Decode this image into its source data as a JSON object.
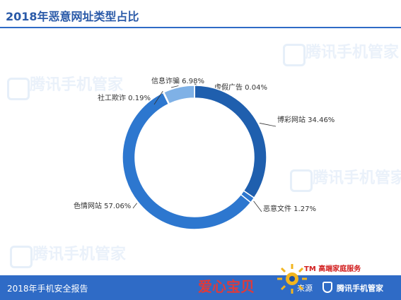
{
  "header": {
    "title": "2018年恶意网址类型占比"
  },
  "footer": {
    "left_text": "2018年手机安全报告",
    "source_text": "来源",
    "brand_text": "腾讯手机管家"
  },
  "watermark": {
    "text": "腾讯手机管家"
  },
  "stamp": {
    "name_text": "爱心宝贝",
    "brand_text": "TM 高端家庭服务"
  },
  "colors": {
    "accent": "#2f6bc6",
    "ring_dark": "#1f5fae",
    "ring_mid": "#2d77cf",
    "ring_light": "#7fb1e6",
    "leader": "#333333"
  },
  "chart_data": {
    "type": "pie",
    "donut": true,
    "title": "2018年恶意网址类型占比",
    "slices": [
      {
        "label": "虚假广告 0.04%",
        "value": 0.04,
        "color": "#1f5fae"
      },
      {
        "label": "博彩网站 34.46%",
        "value": 34.46,
        "color": "#1f5fae"
      },
      {
        "label": "恶意文件 1.27%",
        "value": 1.27,
        "color": "#2d77cf"
      },
      {
        "label": "色情网站 57.06%",
        "value": 57.06,
        "color": "#2d77cf"
      },
      {
        "label": "社工欺诈 0.19%",
        "value": 0.19,
        "color": "#2d77cf"
      },
      {
        "label": "信息诈骗 6.98%",
        "value": 6.98,
        "color": "#7fb1e6"
      }
    ]
  }
}
